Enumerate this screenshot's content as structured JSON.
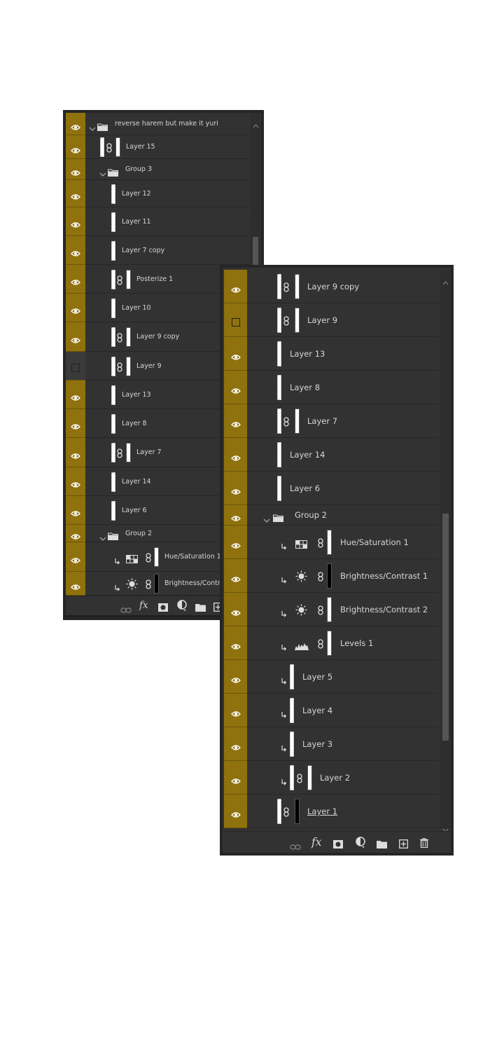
{
  "footer_label": "fx",
  "panels": [
    {
      "layers": [
        {
          "name": "reverse harem but make it yuri",
          "visible": true
        },
        {
          "name": "Layer 15",
          "visible": true
        },
        {
          "name": "Group 3",
          "visible": true
        },
        {
          "name": "Layer 12",
          "visible": true
        },
        {
          "name": "Layer 11",
          "visible": true
        },
        {
          "name": "Layer 7 copy",
          "visible": true
        },
        {
          "name": "Posterize 1",
          "visible": true
        },
        {
          "name": "Layer 10",
          "visible": true
        },
        {
          "name": "Layer 9 copy",
          "visible": true
        },
        {
          "name": "Layer 9",
          "visible": false
        },
        {
          "name": "Layer 13",
          "visible": true
        },
        {
          "name": "Layer 8",
          "visible": true
        },
        {
          "name": "Layer 7",
          "visible": true
        },
        {
          "name": "Layer 14",
          "visible": true
        },
        {
          "name": "Layer 6",
          "visible": true
        },
        {
          "name": "Group 2",
          "visible": true
        },
        {
          "name": "Hue/Saturation 1",
          "visible": true
        },
        {
          "name": "Brightness/Contrast 1",
          "visible": true
        }
      ]
    },
    {
      "layers": [
        {
          "name": "Layer 9 copy",
          "visible": true
        },
        {
          "name": "Layer 9",
          "visible": false
        },
        {
          "name": "Layer 13",
          "visible": true
        },
        {
          "name": "Layer 8",
          "visible": true
        },
        {
          "name": "Layer 7",
          "visible": true
        },
        {
          "name": "Layer 14",
          "visible": true
        },
        {
          "name": "Layer 6",
          "visible": true
        },
        {
          "name": "Group 2",
          "visible": true
        },
        {
          "name": "Hue/Saturation 1",
          "visible": true
        },
        {
          "name": "Brightness/Contrast 1",
          "visible": true
        },
        {
          "name": "Brightness/Contrast 2",
          "visible": true
        },
        {
          "name": "Levels 1",
          "visible": true
        },
        {
          "name": "Layer 5",
          "visible": true
        },
        {
          "name": "Layer 4",
          "visible": true
        },
        {
          "name": "Layer 3",
          "visible": true
        },
        {
          "name": "Layer 2",
          "visible": true
        },
        {
          "name": "Layer 1",
          "visible": true
        }
      ]
    }
  ]
}
